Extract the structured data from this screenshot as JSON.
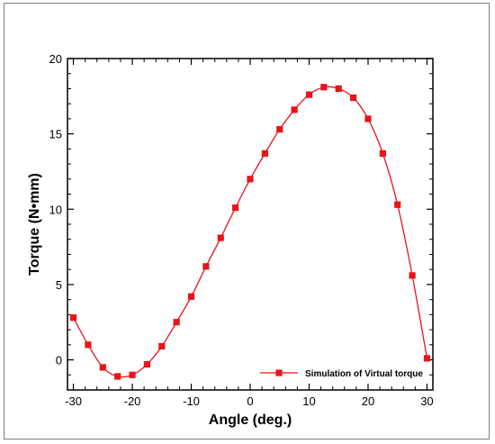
{
  "chart_data": {
    "type": "line",
    "title": "",
    "xlabel": "Angle (deg.)",
    "ylabel": "Torque (N•mm)",
    "xlim": [
      -31,
      31
    ],
    "ylim": [
      -2,
      20
    ],
    "x_ticks": [
      -30,
      -20,
      -10,
      0,
      10,
      20,
      30
    ],
    "y_ticks": [
      0,
      5,
      10,
      15,
      20
    ],
    "legend_position": "bottom-right",
    "grid": false,
    "series": [
      {
        "name": "Simulation of Virtual torque",
        "color": "#e8141a",
        "marker": "square",
        "x": [
          -30,
          -27.5,
          -25,
          -22.5,
          -20,
          -17.5,
          -15,
          -12.5,
          -10,
          -7.5,
          -5,
          -2.5,
          0,
          2.5,
          5,
          7.5,
          10,
          12.5,
          15,
          17.5,
          20,
          22.5,
          25,
          27.5,
          30
        ],
        "y": [
          2.8,
          1.0,
          -0.5,
          -1.1,
          -1.0,
          -0.3,
          0.9,
          2.5,
          4.2,
          6.2,
          8.1,
          10.1,
          12.0,
          13.7,
          15.3,
          16.6,
          17.6,
          18.1,
          18.0,
          17.4,
          16.0,
          13.7,
          10.3,
          5.6,
          0.1
        ]
      }
    ]
  }
}
